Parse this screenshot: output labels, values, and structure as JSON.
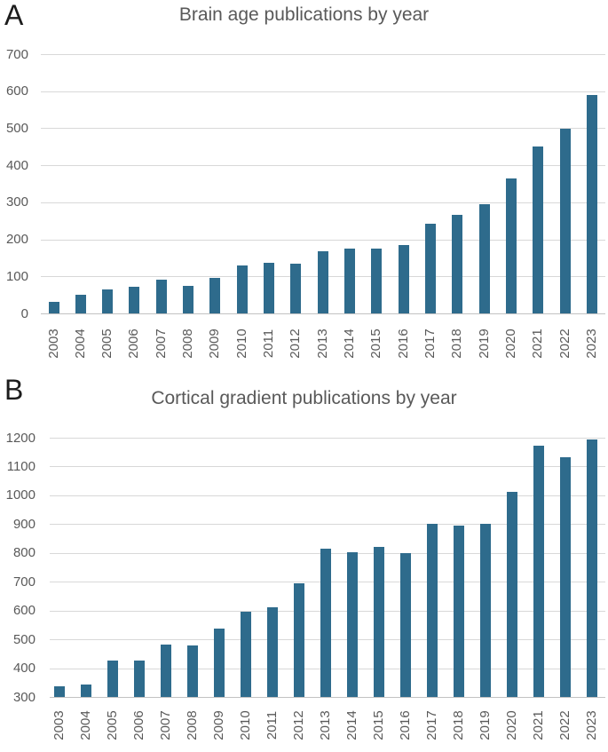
{
  "figure": {
    "background": "#ffffff",
    "bar_color": "#2E6B8C",
    "text_color": "#595959",
    "gridline_color": "#D8D8D8"
  },
  "chart_data": [
    {
      "type": "bar",
      "panel_label": "A",
      "title": "Brain age publications by year",
      "xlabel": "",
      "ylabel": "",
      "categories": [
        "2003",
        "2004",
        "2005",
        "2006",
        "2007",
        "2008",
        "2009",
        "2010",
        "2011",
        "2012",
        "2013",
        "2014",
        "2015",
        "2016",
        "2017",
        "2018",
        "2019",
        "2020",
        "2021",
        "2022",
        "2023"
      ],
      "values": [
        33,
        52,
        65,
        72,
        92,
        76,
        98,
        130,
        137,
        135,
        168,
        177,
        177,
        186,
        244,
        268,
        297,
        365,
        453,
        500,
        592
      ],
      "ylim": [
        0,
        700
      ],
      "y_ticks": [
        0,
        100,
        200,
        300,
        400,
        500,
        600,
        700
      ],
      "grid": true,
      "legend": null,
      "bar_color": "#2E6B8C"
    },
    {
      "type": "bar",
      "panel_label": "B",
      "title": "Cortical gradient publications by year",
      "xlabel": "",
      "ylabel": "",
      "categories": [
        "2003",
        "2004",
        "2005",
        "2006",
        "2007",
        "2008",
        "2009",
        "2010",
        "2011",
        "2012",
        "2013",
        "2014",
        "2015",
        "2016",
        "2017",
        "2018",
        "2019",
        "2020",
        "2021",
        "2022",
        "2023"
      ],
      "values": [
        338,
        345,
        427,
        429,
        483,
        481,
        540,
        598,
        612,
        697,
        815,
        805,
        823,
        802,
        902,
        897,
        903,
        1012,
        1175,
        1135,
        1195
      ],
      "ylim": [
        300,
        1200
      ],
      "y_ticks": [
        300,
        400,
        500,
        600,
        700,
        800,
        900,
        1000,
        1100,
        1200
      ],
      "grid": true,
      "legend": null,
      "bar_color": "#2E6B8C"
    }
  ]
}
